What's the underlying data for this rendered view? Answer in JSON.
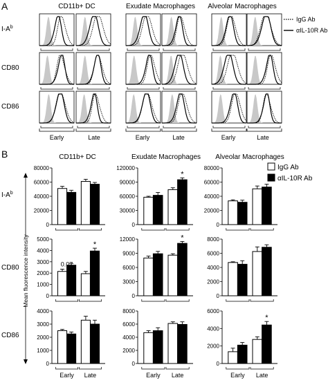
{
  "panel_a": {
    "letter": "A",
    "column_titles": [
      "CD11b+ DC",
      "Exudate Macrophages",
      "Alveolar Macrophages"
    ],
    "row_labels": [
      "I-A",
      "CD80",
      "CD86"
    ],
    "row_label_superscript": "b",
    "x_groups": [
      "Early",
      "Late"
    ],
    "legend": [
      {
        "label": "IgG Ab",
        "style": "dotted"
      },
      {
        "label": "αIL-10R Ab",
        "style": "solid"
      }
    ]
  },
  "panel_b": {
    "letter": "B",
    "ylabel": "Mean fluorescence intensity",
    "legend": [
      {
        "label": "IgG Ab",
        "fill": "#ffffff"
      },
      {
        "label": "αIL-10R Ab",
        "fill": "#000000"
      }
    ],
    "row_labels": [
      "I-A",
      "CD80",
      "CD86"
    ],
    "row_label_superscript": "b"
  },
  "chart_data": [
    {
      "type": "bar",
      "column": "CD11b+ DC",
      "marker": "I-A b",
      "title": "CD11b+ DC",
      "categories": [
        "Early",
        "Late"
      ],
      "series": [
        {
          "name": "IgG Ab",
          "values": [
            51000,
            61000
          ],
          "errors": [
            3000,
            3000
          ]
        },
        {
          "name": "αIL-10R Ab",
          "values": [
            45500,
            57000
          ],
          "errors": [
            3000,
            2500
          ]
        }
      ],
      "ylim": [
        0,
        80000
      ],
      "yticks": [
        "0",
        "20000",
        "40000",
        "60000",
        "80000"
      ],
      "annotations": []
    },
    {
      "type": "bar",
      "column": "Exudate Macrophages",
      "marker": "I-A b",
      "title": "Exudate Macrophages",
      "categories": [
        "Early",
        "Late"
      ],
      "series": [
        {
          "name": "IgG Ab",
          "values": [
            58000,
            74000
          ],
          "errors": [
            2000,
            4000
          ]
        },
        {
          "name": "αIL-10R Ab",
          "values": [
            62000,
            95000
          ],
          "errors": [
            6000,
            4000
          ]
        }
      ],
      "ylim": [
        0,
        120000
      ],
      "yticks": [
        "0",
        "30000",
        "60000",
        "90000",
        "120000"
      ],
      "annotations": [
        {
          "text": "*",
          "series": 1,
          "category": 1
        }
      ]
    },
    {
      "type": "bar",
      "column": "Alveolar Macrophages",
      "marker": "I-A b",
      "title": "Alveolar Macrophages",
      "categories": [
        "Early",
        "Late"
      ],
      "series": [
        {
          "name": "IgG Ab",
          "values": [
            33500,
            50500
          ],
          "errors": [
            1500,
            4000
          ]
        },
        {
          "name": "αIL-10R Ab",
          "values": [
            31500,
            53000
          ],
          "errors": [
            3000,
            4000
          ]
        }
      ],
      "ylim": [
        0,
        80000
      ],
      "yticks": [
        "0",
        "20000",
        "40000",
        "60000",
        "80000"
      ],
      "annotations": []
    },
    {
      "type": "bar",
      "column": "CD11b+ DC",
      "marker": "CD80",
      "categories": [
        "Early",
        "Late"
      ],
      "series": [
        {
          "name": "IgG Ab",
          "values": [
            2150,
            1950
          ],
          "errors": [
            200,
            200
          ]
        },
        {
          "name": "αIL-10R Ab",
          "values": [
            2700,
            3950
          ],
          "errors": [
            150,
            250
          ]
        }
      ],
      "ylim": [
        0,
        5000
      ],
      "yticks": [
        "0",
        "1000",
        "2000",
        "3000",
        "4000",
        "5000"
      ],
      "annotations": [
        {
          "text": "0.07",
          "series": 0,
          "category": 0
        },
        {
          "text": "*",
          "series": 1,
          "category": 1
        }
      ]
    },
    {
      "type": "bar",
      "column": "Exudate Macrophages",
      "marker": "CD80",
      "categories": [
        "Early",
        "Late"
      ],
      "series": [
        {
          "name": "IgG Ab",
          "values": [
            8000,
            8600
          ],
          "errors": [
            400,
            300
          ]
        },
        {
          "name": "αIL-10R Ab",
          "values": [
            8900,
            11100
          ],
          "errors": [
            500,
            400
          ]
        }
      ],
      "ylim": [
        0,
        12000
      ],
      "yticks": [
        "0",
        "3000",
        "6000",
        "9000",
        "12000"
      ],
      "annotations": [
        {
          "text": "*",
          "series": 1,
          "category": 1
        }
      ]
    },
    {
      "type": "bar",
      "column": "Alveolar Macrophages",
      "marker": "CD80",
      "categories": [
        "Early",
        "Late"
      ],
      "series": [
        {
          "name": "IgG Ab",
          "values": [
            4700,
            6250
          ],
          "errors": [
            100,
            650
          ]
        },
        {
          "name": "αIL-10R Ab",
          "values": [
            4450,
            6850
          ],
          "errors": [
            500,
            350
          ]
        }
      ],
      "ylim": [
        0,
        8000
      ],
      "yticks": [
        "0",
        "2000",
        "4000",
        "6000",
        "8000"
      ],
      "annotations": []
    },
    {
      "type": "bar",
      "column": "CD11b+ DC",
      "marker": "CD86",
      "categories": [
        "Early",
        "Late"
      ],
      "series": [
        {
          "name": "IgG Ab",
          "values": [
            2500,
            3300
          ],
          "errors": [
            100,
            300
          ]
        },
        {
          "name": "αIL-10R Ab",
          "values": [
            2250,
            3000
          ],
          "errors": [
            150,
            300
          ]
        }
      ],
      "ylim": [
        0,
        4000
      ],
      "yticks": [
        "0",
        "1000",
        "2000",
        "3000",
        "4000"
      ],
      "annotations": []
    },
    {
      "type": "bar",
      "column": "Exudate Macrophages",
      "marker": "CD86",
      "categories": [
        "Early",
        "Late"
      ],
      "series": [
        {
          "name": "IgG Ab",
          "values": [
            4700,
            6100
          ],
          "errors": [
            300,
            250
          ]
        },
        {
          "name": "αIL-10R Ab",
          "values": [
            5000,
            5950
          ],
          "errors": [
            450,
            400
          ]
        }
      ],
      "ylim": [
        0,
        8000
      ],
      "yticks": [
        "0",
        "2000",
        "4000",
        "6000",
        "8000"
      ],
      "annotations": []
    },
    {
      "type": "bar",
      "column": "Alveolar Macrophages",
      "marker": "CD86",
      "categories": [
        "Early",
        "Late"
      ],
      "series": [
        {
          "name": "IgG Ab",
          "values": [
            1350,
            2750
          ],
          "errors": [
            400,
            300
          ]
        },
        {
          "name": "αIL-10R Ab",
          "values": [
            2100,
            4400
          ],
          "errors": [
            300,
            400
          ]
        }
      ],
      "ylim": [
        0,
        6000
      ],
      "yticks": [
        "0",
        "2000",
        "4000",
        "6000"
      ],
      "annotations": [
        {
          "text": "*",
          "series": 1,
          "category": 1
        }
      ]
    }
  ]
}
